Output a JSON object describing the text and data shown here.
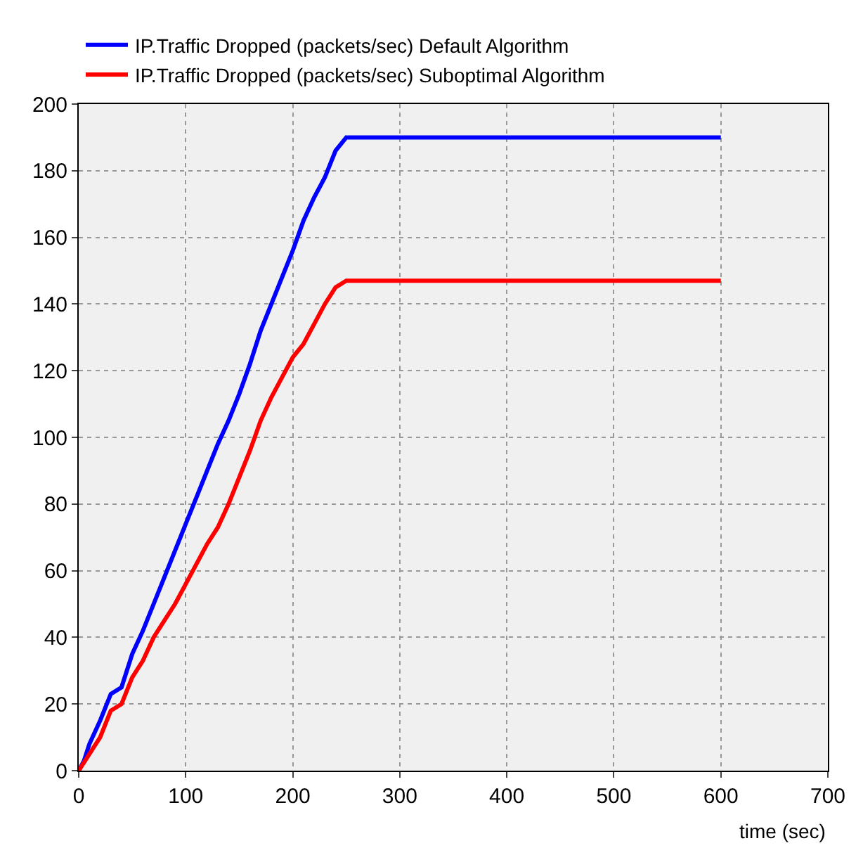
{
  "chart_data": {
    "type": "line",
    "xlabel": "time (sec)",
    "xlim": [
      0,
      700
    ],
    "xticks": [
      0,
      100,
      200,
      300,
      400,
      500,
      600,
      700
    ],
    "ylim": [
      0,
      200
    ],
    "yticks": [
      0,
      20,
      40,
      60,
      80,
      100,
      120,
      140,
      160,
      180,
      200
    ],
    "grid": true,
    "legend": "top left",
    "marker": "none",
    "line_style": "solid",
    "series": [
      {
        "name": "IP.Traffic Dropped (packets/sec) Default Algorithm",
        "color": "#0000ff",
        "x": [
          0,
          5,
          10,
          20,
          30,
          40,
          50,
          60,
          70,
          80,
          90,
          100,
          110,
          120,
          130,
          140,
          150,
          160,
          170,
          180,
          190,
          200,
          210,
          220,
          230,
          240,
          250,
          600
        ],
        "values": [
          0,
          3,
          8,
          15,
          23,
          25,
          35,
          42,
          50,
          58,
          66,
          74,
          82,
          90,
          98,
          105,
          113,
          122,
          132,
          140,
          148,
          156,
          165,
          172,
          178,
          186,
          190,
          190
        ]
      },
      {
        "name": "IP.Traffic Dropped (packets/sec) Suboptimal Algorithm",
        "color": "#ff0000",
        "x": [
          0,
          10,
          20,
          30,
          40,
          50,
          60,
          70,
          80,
          90,
          100,
          110,
          120,
          130,
          140,
          150,
          160,
          170,
          180,
          190,
          200,
          210,
          220,
          230,
          240,
          250,
          600
        ],
        "values": [
          0,
          5,
          10,
          18,
          20,
          28,
          33,
          40,
          45,
          50,
          56,
          62,
          68,
          73,
          80,
          88,
          96,
          105,
          112,
          118,
          124,
          128,
          134,
          140,
          145,
          147,
          147
        ]
      }
    ]
  }
}
